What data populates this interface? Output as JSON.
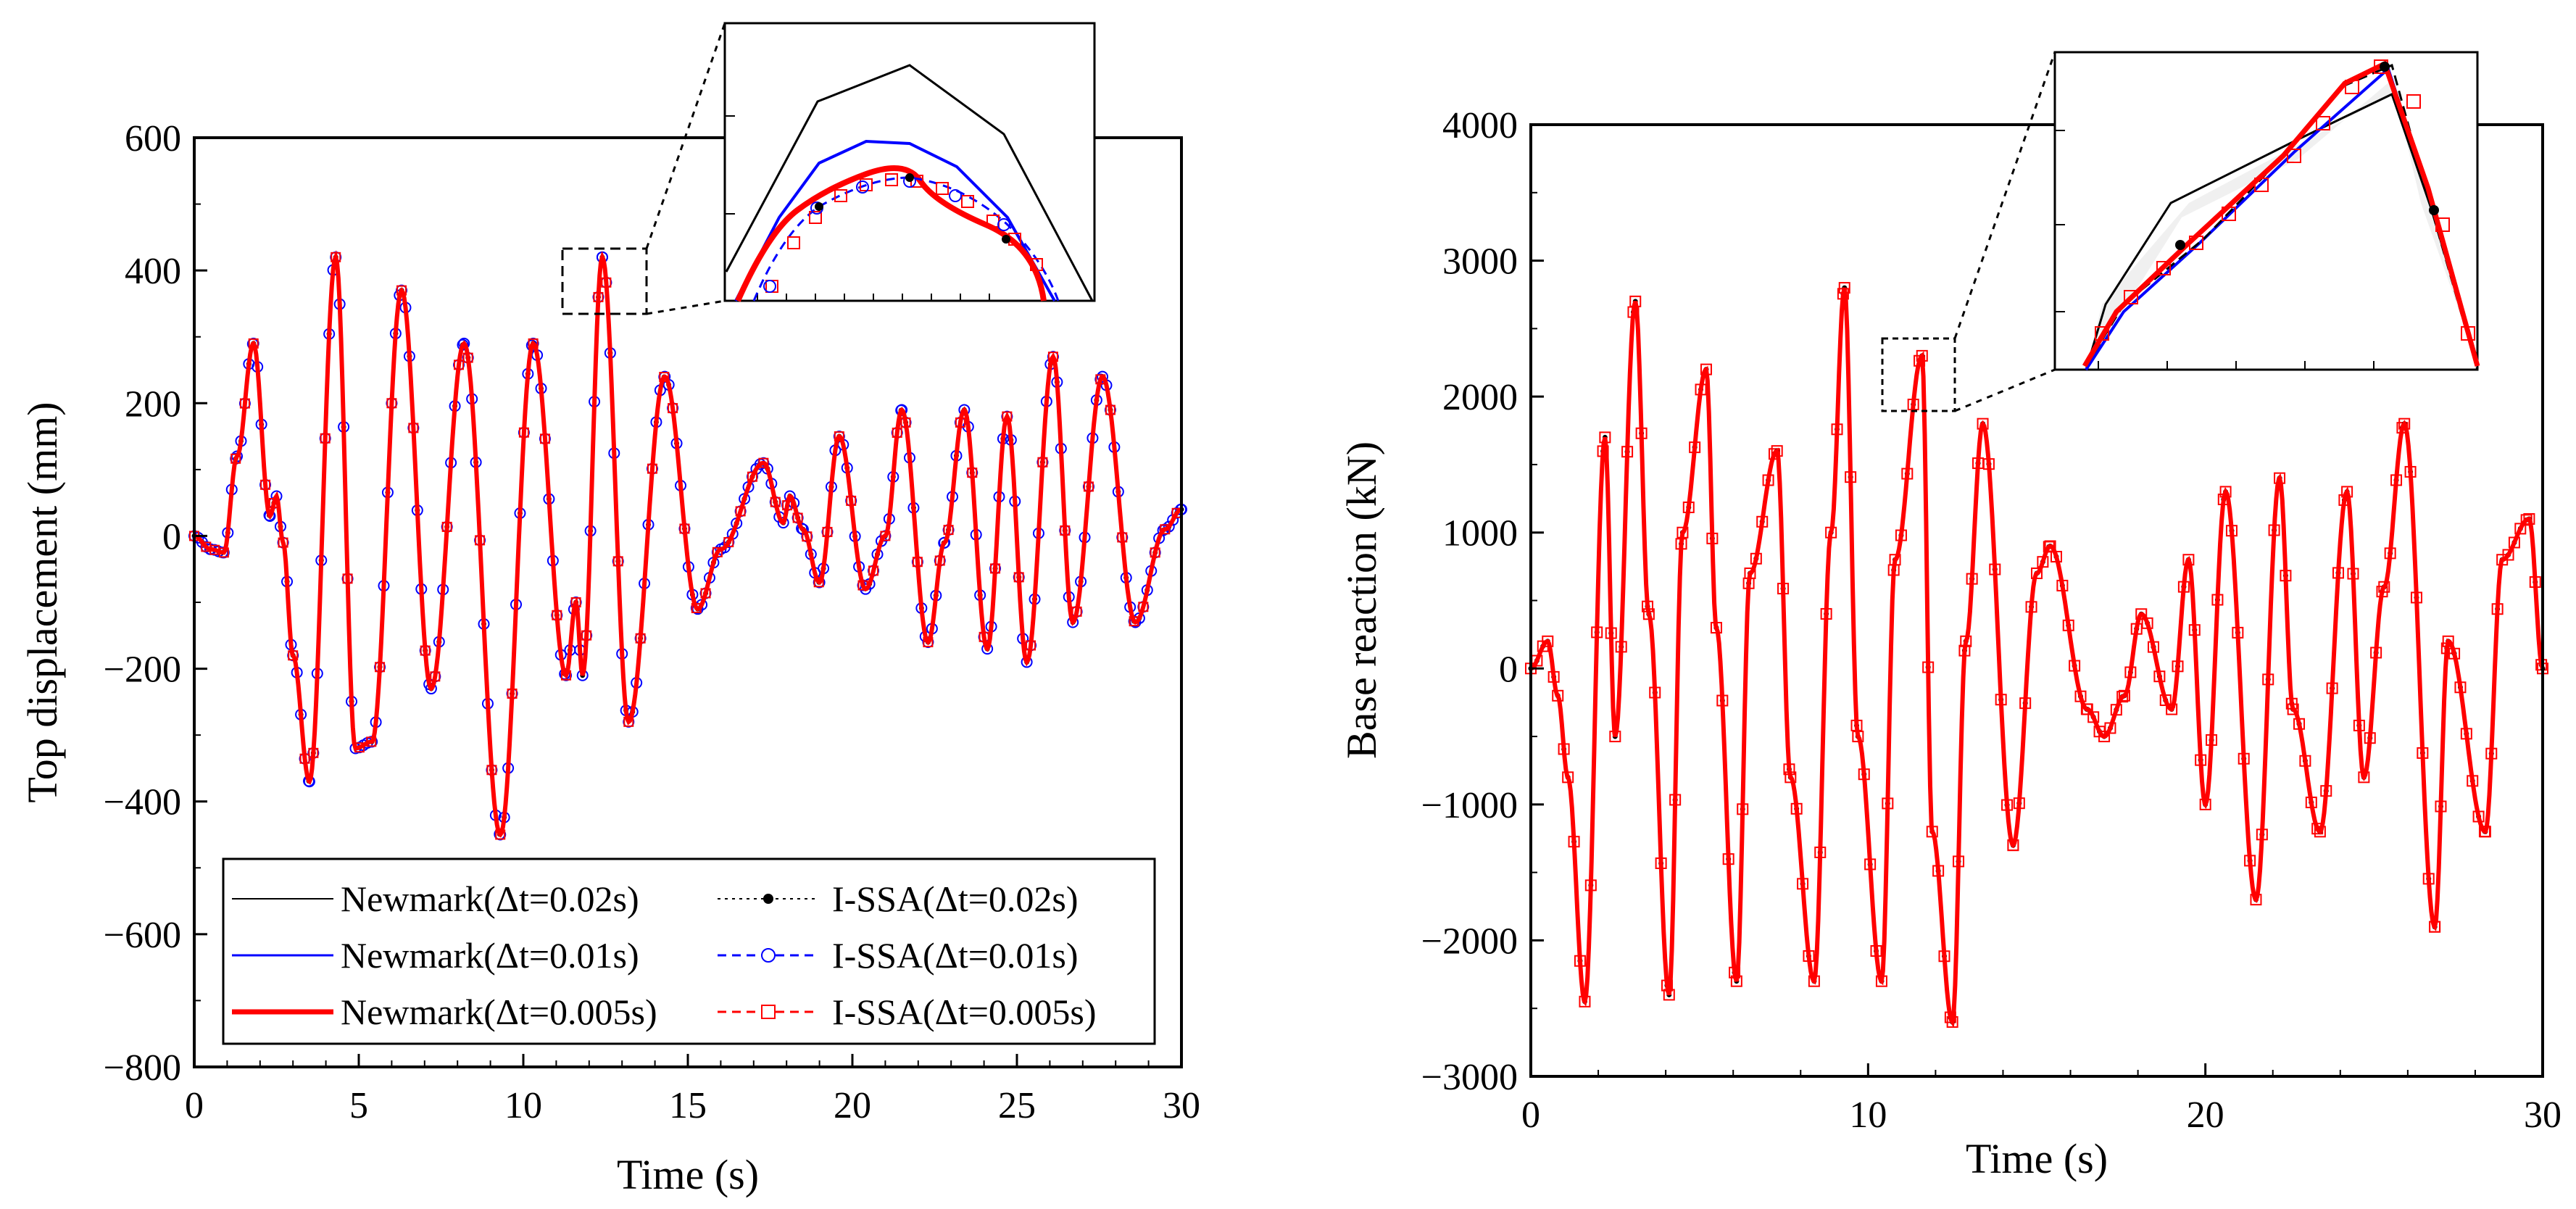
{
  "colors": {
    "newmark_002": "#000000",
    "newmark_001": "#0000ff",
    "newmark_0005": "#ff0000",
    "issa_002_marker": "#000000",
    "issa_001_marker": "#0000ff",
    "issa_0005_marker": "#ff0000"
  },
  "legend": {
    "entries": [
      {
        "label": "Newmark(Δt=0.02s)",
        "color": "#000000",
        "style": "solid-thin"
      },
      {
        "label": "I-SSA(Δt=0.02s)",
        "color": "#000000",
        "style": "dotted-filled-circle"
      },
      {
        "label": "Newmark(Δt=0.01s)",
        "color": "#0000ff",
        "style": "solid"
      },
      {
        "label": "I-SSA(Δt=0.01s)",
        "color": "#0000ff",
        "style": "dashed-open-circle"
      },
      {
        "label": "Newmark(Δt=0.005s)",
        "color": "#ff0000",
        "style": "solid-thick"
      },
      {
        "label": "I-SSA(Δt=0.005s)",
        "color": "#ff0000",
        "style": "dashed-open-square"
      }
    ]
  },
  "chart_data": [
    {
      "type": "line",
      "title": "",
      "xlabel": "Time (s)",
      "ylabel": "Top displacement (mm)",
      "xlim": [
        0,
        30
      ],
      "ylim": [
        -800,
        600
      ],
      "xticks": [
        "0",
        "5",
        "10",
        "15",
        "20",
        "25",
        "30"
      ],
      "yticks": [
        "600",
        "400",
        "200",
        "0",
        "−200",
        "−400",
        "−600",
        "−800"
      ],
      "legend_position": "bottom-left",
      "inset": "zoom of peak near t = 12.4 s",
      "x": [
        0,
        0.5,
        0.9,
        1.3,
        1.8,
        2.3,
        2.5,
        2.7,
        3.0,
        3.5,
        4.3,
        4.9,
        5.4,
        6.3,
        7.2,
        8.2,
        9.3,
        10.3,
        11.3,
        11.6,
        11.8,
        12.4,
        13.2,
        14.3,
        15.3,
        16.0,
        17.3,
        17.9,
        18.1,
        18.5,
        19.0,
        19.6,
        20.4,
        21.0,
        21.5,
        22.3,
        22.8,
        23.4,
        24.1,
        24.7,
        25.3,
        26.1,
        26.7,
        27.6,
        28.6,
        29.5,
        30
      ],
      "series": [
        {
          "name": "Newmark(Δt=0.02s)",
          "values": [
            0,
            -20,
            -25,
            120,
            290,
            30,
            60,
            -10,
            -180,
            -370,
            420,
            -320,
            -310,
            370,
            -230,
            290,
            -450,
            290,
            -210,
            -100,
            -210,
            420,
            -280,
            240,
            -110,
            -20,
            110,
            20,
            60,
            10,
            -70,
            150,
            -80,
            0,
            190,
            -160,
            -10,
            190,
            -170,
            180,
            -190,
            270,
            -130,
            240,
            -130,
            10,
            40
          ]
        },
        {
          "name": "I-SSA(Δt=0.02s)",
          "values": [
            0,
            -20,
            -25,
            120,
            290,
            30,
            60,
            -10,
            -180,
            -370,
            420,
            -320,
            -310,
            370,
            -230,
            290,
            -450,
            290,
            -210,
            -100,
            -210,
            420,
            -280,
            240,
            -110,
            -20,
            110,
            20,
            60,
            10,
            -70,
            150,
            -80,
            0,
            190,
            -160,
            -10,
            190,
            -170,
            180,
            -190,
            270,
            -130,
            240,
            -130,
            10,
            40
          ]
        },
        {
          "name": "Newmark(Δt=0.01s)",
          "values": [
            0,
            -20,
            -25,
            120,
            290,
            30,
            60,
            -10,
            -180,
            -370,
            420,
            -320,
            -310,
            370,
            -230,
            290,
            -450,
            290,
            -210,
            -100,
            -210,
            420,
            -280,
            240,
            -110,
            -20,
            110,
            20,
            60,
            10,
            -70,
            150,
            -80,
            0,
            190,
            -160,
            -10,
            190,
            -170,
            180,
            -190,
            270,
            -130,
            240,
            -130,
            10,
            40
          ]
        },
        {
          "name": "I-SSA(Δt=0.01s)",
          "values": [
            0,
            -20,
            -25,
            120,
            290,
            30,
            60,
            -10,
            -180,
            -370,
            420,
            -320,
            -310,
            370,
            -230,
            290,
            -450,
            290,
            -210,
            -100,
            -210,
            420,
            -280,
            240,
            -110,
            -20,
            110,
            20,
            60,
            10,
            -70,
            150,
            -80,
            0,
            190,
            -160,
            -10,
            190,
            -170,
            180,
            -190,
            270,
            -130,
            240,
            -130,
            10,
            40
          ]
        },
        {
          "name": "Newmark(Δt=0.005s)",
          "values": [
            0,
            -20,
            -25,
            120,
            290,
            30,
            60,
            -10,
            -180,
            -370,
            420,
            -320,
            -310,
            370,
            -230,
            290,
            -450,
            290,
            -210,
            -100,
            -210,
            420,
            -280,
            240,
            -110,
            -20,
            110,
            20,
            60,
            10,
            -70,
            150,
            -80,
            0,
            190,
            -160,
            -10,
            190,
            -170,
            180,
            -190,
            270,
            -130,
            240,
            -130,
            10,
            40
          ]
        },
        {
          "name": "I-SSA(Δt=0.005s)",
          "values": [
            0,
            -20,
            -25,
            120,
            290,
            30,
            60,
            -10,
            -180,
            -370,
            420,
            -320,
            -310,
            370,
            -230,
            290,
            -450,
            290,
            -210,
            -100,
            -210,
            420,
            -280,
            240,
            -110,
            -20,
            110,
            20,
            60,
            10,
            -70,
            150,
            -80,
            0,
            190,
            -160,
            -10,
            190,
            -170,
            180,
            -190,
            270,
            -130,
            240,
            -130,
            10,
            40
          ]
        }
      ]
    },
    {
      "type": "line",
      "title": "",
      "xlabel": "Time (s)",
      "ylabel": "Base reaction (kN)",
      "xlim": [
        0,
        30
      ],
      "ylim": [
        -3000,
        4000
      ],
      "xticks": [
        "0",
        "10",
        "20",
        "30"
      ],
      "yticks": [
        "4000",
        "3000",
        "2000",
        "1000",
        "0",
        "−1000",
        "−2000",
        "−3000"
      ],
      "inset": "zoom of peak near t = 11.6 s",
      "x": [
        0,
        0.5,
        0.8,
        1.1,
        1.6,
        2.2,
        2.5,
        3.1,
        3.5,
        4.1,
        4.5,
        5.2,
        5.5,
        6.1,
        6.5,
        7.3,
        7.7,
        8.4,
        8.9,
        9.3,
        9.7,
        10.4,
        10.8,
        11.6,
        11.9,
        12.5,
        12.9,
        13.4,
        14.3,
        15.0,
        15.4,
        16.5,
        17.0,
        17.6,
        18.1,
        19.0,
        19.5,
        20.0,
        20.6,
        21.5,
        22.2,
        22.6,
        23.4,
        24.2,
        24.7,
        25.3,
        25.9,
        26.8,
        27.2,
        28.3,
        28.8,
        29.6,
        30
      ],
      "series": [
        {
          "name": "Newmark(Δt=0.02s)",
          "values": [
            0,
            200,
            -200,
            -800,
            -2450,
            1700,
            -500,
            2700,
            400,
            -2400,
            1000,
            2200,
            300,
            -2300,
            700,
            1600,
            -800,
            -2300,
            1000,
            2800,
            -500,
            -2300,
            800,
            2300,
            -1200,
            -2600,
            200,
            1800,
            -1300,
            700,
            900,
            -300,
            -500,
            -200,
            400,
            -300,
            800,
            -1000,
            1300,
            -1700,
            1400,
            -300,
            -1200,
            1300,
            -800,
            600,
            1800,
            -1900,
            200,
            -1200,
            800,
            1100,
            0
          ]
        },
        {
          "name": "I-SSA(Δt=0.02s)",
          "values": [
            0,
            200,
            -200,
            -800,
            -2450,
            1700,
            -500,
            2700,
            400,
            -2400,
            1000,
            2200,
            300,
            -2300,
            700,
            1600,
            -800,
            -2300,
            1000,
            2800,
            -500,
            -2300,
            800,
            2300,
            -1200,
            -2600,
            200,
            1800,
            -1300,
            700,
            900,
            -300,
            -500,
            -200,
            400,
            -300,
            800,
            -1000,
            1300,
            -1700,
            1400,
            -300,
            -1200,
            1300,
            -800,
            600,
            1800,
            -1900,
            200,
            -1200,
            800,
            1100,
            0
          ]
        },
        {
          "name": "Newmark(Δt=0.01s)",
          "values": [
            0,
            200,
            -200,
            -800,
            -2450,
            1700,
            -500,
            2700,
            400,
            -2400,
            1000,
            2200,
            300,
            -2300,
            700,
            1600,
            -800,
            -2300,
            1000,
            2800,
            -500,
            -2300,
            800,
            2300,
            -1200,
            -2600,
            200,
            1800,
            -1300,
            700,
            900,
            -300,
            -500,
            -200,
            400,
            -300,
            800,
            -1000,
            1300,
            -1700,
            1400,
            -300,
            -1200,
            1300,
            -800,
            600,
            1800,
            -1900,
            200,
            -1200,
            800,
            1100,
            0
          ]
        },
        {
          "name": "I-SSA(Δt=0.01s)",
          "values": [
            0,
            200,
            -200,
            -800,
            -2450,
            1700,
            -500,
            2700,
            400,
            -2400,
            1000,
            2200,
            300,
            -2300,
            700,
            1600,
            -800,
            -2300,
            1000,
            2800,
            -500,
            -2300,
            800,
            2300,
            -1200,
            -2600,
            200,
            1800,
            -1300,
            700,
            900,
            -300,
            -500,
            -200,
            400,
            -300,
            800,
            -1000,
            1300,
            -1700,
            1400,
            -300,
            -1200,
            1300,
            -800,
            600,
            1800,
            -1900,
            200,
            -1200,
            800,
            1100,
            0
          ]
        },
        {
          "name": "Newmark(Δt=0.005s)",
          "values": [
            0,
            200,
            -200,
            -800,
            -2450,
            1700,
            -500,
            2700,
            400,
            -2400,
            1000,
            2200,
            300,
            -2300,
            700,
            1600,
            -800,
            -2300,
            1000,
            2800,
            -500,
            -2300,
            800,
            2300,
            -1200,
            -2600,
            200,
            1800,
            -1300,
            700,
            900,
            -300,
            -500,
            -200,
            400,
            -300,
            800,
            -1000,
            1300,
            -1700,
            1400,
            -300,
            -1200,
            1300,
            -800,
            600,
            1800,
            -1900,
            200,
            -1200,
            800,
            1100,
            0
          ]
        },
        {
          "name": "I-SSA(Δt=0.005s)",
          "values": [
            0,
            200,
            -200,
            -800,
            -2450,
            1700,
            -500,
            2700,
            400,
            -2400,
            1000,
            2200,
            300,
            -2300,
            700,
            1600,
            -800,
            -2300,
            1000,
            2800,
            -500,
            -2300,
            800,
            2300,
            -1200,
            -2600,
            200,
            1800,
            -1300,
            700,
            900,
            -300,
            -500,
            -200,
            400,
            -300,
            800,
            -1000,
            1300,
            -1700,
            1400,
            -300,
            -1200,
            1300,
            -800,
            600,
            1800,
            -1900,
            200,
            -1200,
            800,
            1100,
            0
          ]
        }
      ]
    }
  ]
}
